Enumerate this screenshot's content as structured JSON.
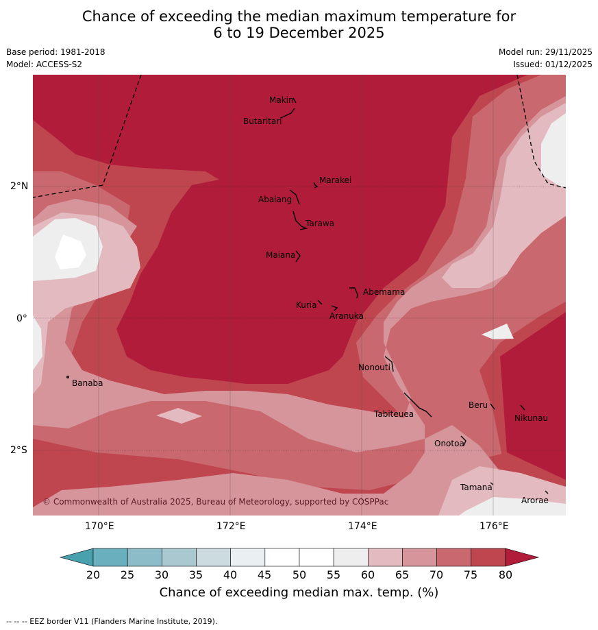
{
  "title": {
    "line1": "Chance of exceeding the median maximum temperature for",
    "line2": "6 to 19 December 2025"
  },
  "meta": {
    "base_period": "Base period: 1981-2018",
    "model": "Model: ACCESS-S2",
    "model_run": "Model run: 29/11/2025",
    "issued": "Issued: 01/12/2025"
  },
  "map": {
    "lon_labels": [
      "170°E",
      "172°E",
      "174°E",
      "176°E"
    ],
    "lat_labels": [
      "2°N",
      "0°",
      "2°S"
    ],
    "places": [
      "Makin",
      "Butaritari",
      "Marakei",
      "Abaiang",
      "Tarawa",
      "Maiana",
      "Abemama",
      "Kuria",
      "Aranuka",
      "Nonouti",
      "Banaba",
      "Beru",
      "Tabiteuea",
      "Nikunau",
      "Onotoa",
      "Tamana",
      "Arorae"
    ],
    "copyright": "© Commonwealth of Australia 2025, Bureau of Meteorology, supported by COSPPac"
  },
  "colorbar": {
    "ticks": [
      "20",
      "25",
      "30",
      "35",
      "40",
      "45",
      "50",
      "55",
      "60",
      "65",
      "70",
      "75",
      "80"
    ],
    "colors": [
      "#4aa1ae",
      "#6aafbd",
      "#8bbcc8",
      "#aac8cf",
      "#ccdbe0",
      "#eaf0f2",
      "#ffffff",
      "#ffffff",
      "#eeeeee",
      "#e3bac0",
      "#d6949b",
      "#c9686f",
      "#bf454f",
      "#b01c3a"
    ],
    "label": "Chance of exceeding median max. temp. (%)"
  },
  "footer": "-- -- -- EEZ border V11 (Flanders Marine Institute, 2019)."
}
